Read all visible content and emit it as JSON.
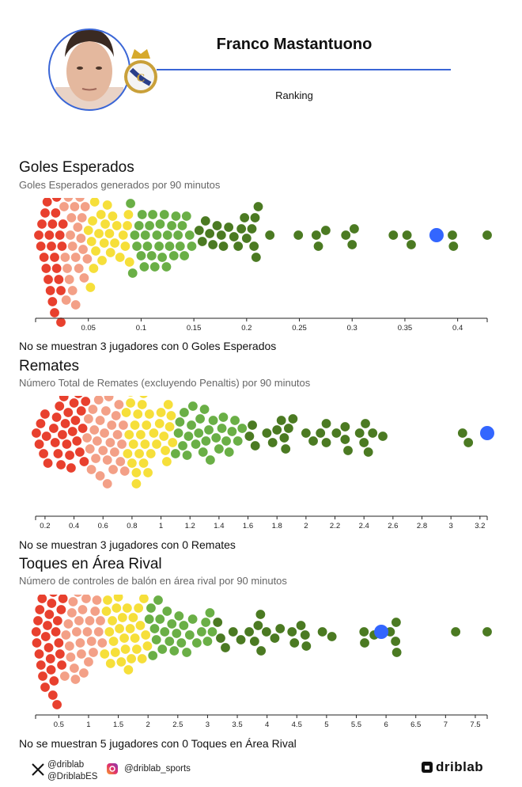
{
  "header": {
    "player_name": "Franco Mastantuono",
    "subtitle": "Ranking",
    "accent_color": "#3a66d6"
  },
  "colors": {
    "bins": [
      "#e8402e",
      "#f3a087",
      "#f6df3a",
      "#6aaf46",
      "#4b7a22"
    ],
    "highlight": "#3366ff"
  },
  "chart_data": [
    {
      "type": "scatter",
      "title": "Goles Esperados",
      "subtitle": "Goles Esperados generados por 90 minutos",
      "note": "No se muestran 3 jugadores con 0 Goles Esperados",
      "xlim": [
        0,
        0.428
      ],
      "ticks": [
        0.05,
        0.1,
        0.15,
        0.2,
        0.25,
        0.3,
        0.35,
        0.4
      ],
      "bin_thresholds": [
        0.0265,
        0.0495,
        0.0895,
        0.15
      ],
      "highlight": 0.38,
      "values": [
        0.003,
        0.005,
        0.006,
        0.008,
        0.009,
        0.01,
        0.011,
        0.012,
        0.012,
        0.013,
        0.014,
        0.014,
        0.015,
        0.016,
        0.016,
        0.017,
        0.018,
        0.018,
        0.019,
        0.02,
        0.02,
        0.021,
        0.022,
        0.022,
        0.023,
        0.024,
        0.024,
        0.025,
        0.026,
        0.026,
        0.027,
        0.028,
        0.029,
        0.03,
        0.031,
        0.032,
        0.032,
        0.033,
        0.034,
        0.035,
        0.035,
        0.036,
        0.037,
        0.038,
        0.038,
        0.039,
        0.04,
        0.041,
        0.042,
        0.043,
        0.044,
        0.045,
        0.046,
        0.047,
        0.049,
        0.05,
        0.051,
        0.052,
        0.053,
        0.054,
        0.055,
        0.056,
        0.057,
        0.058,
        0.06,
        0.062,
        0.063,
        0.065,
        0.066,
        0.068,
        0.07,
        0.071,
        0.073,
        0.075,
        0.077,
        0.08,
        0.083,
        0.085,
        0.087,
        0.088,
        0.089,
        0.09,
        0.092,
        0.094,
        0.096,
        0.098,
        0.1,
        0.101,
        0.103,
        0.104,
        0.106,
        0.108,
        0.11,
        0.111,
        0.113,
        0.115,
        0.117,
        0.118,
        0.12,
        0.122,
        0.124,
        0.125,
        0.127,
        0.129,
        0.131,
        0.133,
        0.135,
        0.137,
        0.139,
        0.141,
        0.143,
        0.146,
        0.148,
        0.155,
        0.158,
        0.161,
        0.165,
        0.168,
        0.172,
        0.176,
        0.178,
        0.183,
        0.188,
        0.192,
        0.195,
        0.198,
        0.2,
        0.205,
        0.207,
        0.208,
        0.209,
        0.211,
        0.222,
        0.249,
        0.266,
        0.268,
        0.275,
        0.294,
        0.3,
        0.302,
        0.339,
        0.352,
        0.356,
        0.395,
        0.396,
        0.428
      ]
    },
    {
      "type": "scatter",
      "title": "Remates",
      "subtitle": "Número Total de Remates (excluyendo Penaltis) por 90 minutos",
      "note": "No se muestran 3 jugadores con 0 Remates",
      "xlim": [
        0.135,
        3.25
      ],
      "ticks": [
        0.2,
        0.4,
        0.6,
        0.8,
        1,
        1.2,
        1.4,
        1.6,
        1.8,
        2,
        2.2,
        2.4,
        2.6,
        2.8,
        3,
        3.2
      ],
      "bin_thresholds": [
        0.485,
        0.755,
        1.09,
        1.585
      ],
      "highlight": 3.25,
      "values": [
        0.14,
        0.16,
        0.17,
        0.19,
        0.2,
        0.21,
        0.22,
        0.26,
        0.27,
        0.28,
        0.29,
        0.3,
        0.31,
        0.32,
        0.33,
        0.34,
        0.35,
        0.36,
        0.37,
        0.38,
        0.39,
        0.4,
        0.41,
        0.42,
        0.43,
        0.44,
        0.45,
        0.46,
        0.47,
        0.48,
        0.49,
        0.5,
        0.51,
        0.52,
        0.53,
        0.54,
        0.55,
        0.56,
        0.57,
        0.58,
        0.58,
        0.59,
        0.6,
        0.61,
        0.62,
        0.63,
        0.63,
        0.64,
        0.65,
        0.66,
        0.67,
        0.68,
        0.68,
        0.69,
        0.7,
        0.71,
        0.72,
        0.73,
        0.74,
        0.75,
        0.76,
        0.77,
        0.78,
        0.79,
        0.79,
        0.8,
        0.81,
        0.82,
        0.83,
        0.83,
        0.84,
        0.85,
        0.86,
        0.87,
        0.88,
        0.88,
        0.89,
        0.9,
        0.91,
        0.92,
        0.93,
        0.95,
        0.97,
        0.99,
        1.0,
        1.02,
        1.03,
        1.04,
        1.05,
        1.06,
        1.07,
        1.08,
        1.1,
        1.12,
        1.13,
        1.15,
        1.16,
        1.18,
        1.19,
        1.21,
        1.22,
        1.24,
        1.26,
        1.27,
        1.29,
        1.3,
        1.31,
        1.33,
        1.34,
        1.36,
        1.38,
        1.4,
        1.42,
        1.43,
        1.45,
        1.47,
        1.49,
        1.51,
        1.53,
        1.56,
        1.61,
        1.63,
        1.65,
        1.73,
        1.77,
        1.8,
        1.83,
        1.85,
        1.86,
        1.88,
        1.91,
        2.0,
        2.05,
        2.1,
        2.14,
        2.14,
        2.21,
        2.27,
        2.27,
        2.29,
        2.37,
        2.4,
        2.41,
        2.43,
        2.46,
        2.53,
        3.08,
        3.12
      ]
    },
    {
      "type": "scatter",
      "title": "Toques en Área Rival",
      "subtitle": "Número de controles de balón en área rival por 90 minutos",
      "note": "No se muestran 5 jugadores con 0 Toques en Área Rival",
      "xlim": [
        0.11,
        7.7
      ],
      "ticks": [
        0.5,
        1,
        1.5,
        2,
        2.5,
        3,
        3.5,
        4,
        4.5,
        5,
        5.5,
        6,
        6.5,
        7,
        7.5
      ],
      "bin_thresholds": [
        0.59,
        1.255,
        2.01,
        3.12
      ],
      "highlight": 5.92,
      "values": [
        0.12,
        0.13,
        0.15,
        0.17,
        0.18,
        0.2,
        0.22,
        0.23,
        0.25,
        0.27,
        0.28,
        0.3,
        0.31,
        0.33,
        0.34,
        0.36,
        0.37,
        0.38,
        0.4,
        0.41,
        0.42,
        0.44,
        0.45,
        0.46,
        0.47,
        0.48,
        0.5,
        0.51,
        0.52,
        0.54,
        0.55,
        0.57,
        0.6,
        0.62,
        0.64,
        0.66,
        0.68,
        0.7,
        0.72,
        0.74,
        0.76,
        0.78,
        0.8,
        0.82,
        0.84,
        0.86,
        0.88,
        0.9,
        0.92,
        0.94,
        0.96,
        0.98,
        1.0,
        1.02,
        1.05,
        1.08,
        1.11,
        1.14,
        1.17,
        1.2,
        1.23,
        1.27,
        1.3,
        1.32,
        1.35,
        1.37,
        1.4,
        1.42,
        1.45,
        1.47,
        1.5,
        1.52,
        1.55,
        1.57,
        1.6,
        1.62,
        1.65,
        1.67,
        1.7,
        1.72,
        1.75,
        1.78,
        1.81,
        1.84,
        1.87,
        1.9,
        1.93,
        1.96,
        1.99,
        2.02,
        2.05,
        2.08,
        2.11,
        2.14,
        2.17,
        2.2,
        2.24,
        2.28,
        2.32,
        2.36,
        2.4,
        2.44,
        2.48,
        2.52,
        2.56,
        2.6,
        2.65,
        2.7,
        2.75,
        2.82,
        2.9,
        2.97,
        3.0,
        3.04,
        3.08,
        3.17,
        3.22,
        3.3,
        3.43,
        3.56,
        3.7,
        3.79,
        3.85,
        3.89,
        3.9,
        3.99,
        4.13,
        4.22,
        4.42,
        4.46,
        4.57,
        4.64,
        4.66,
        4.93,
        5.09,
        5.63,
        5.64,
        5.8,
        6.07,
        6.16,
        6.17,
        6.18,
        7.17,
        7.7
      ]
    }
  ],
  "footer": {
    "x_handle_1": "@driblab",
    "x_handle_2": "@DriblabES",
    "instagram_handle": "@driblab_sports",
    "brand": "driblab"
  }
}
